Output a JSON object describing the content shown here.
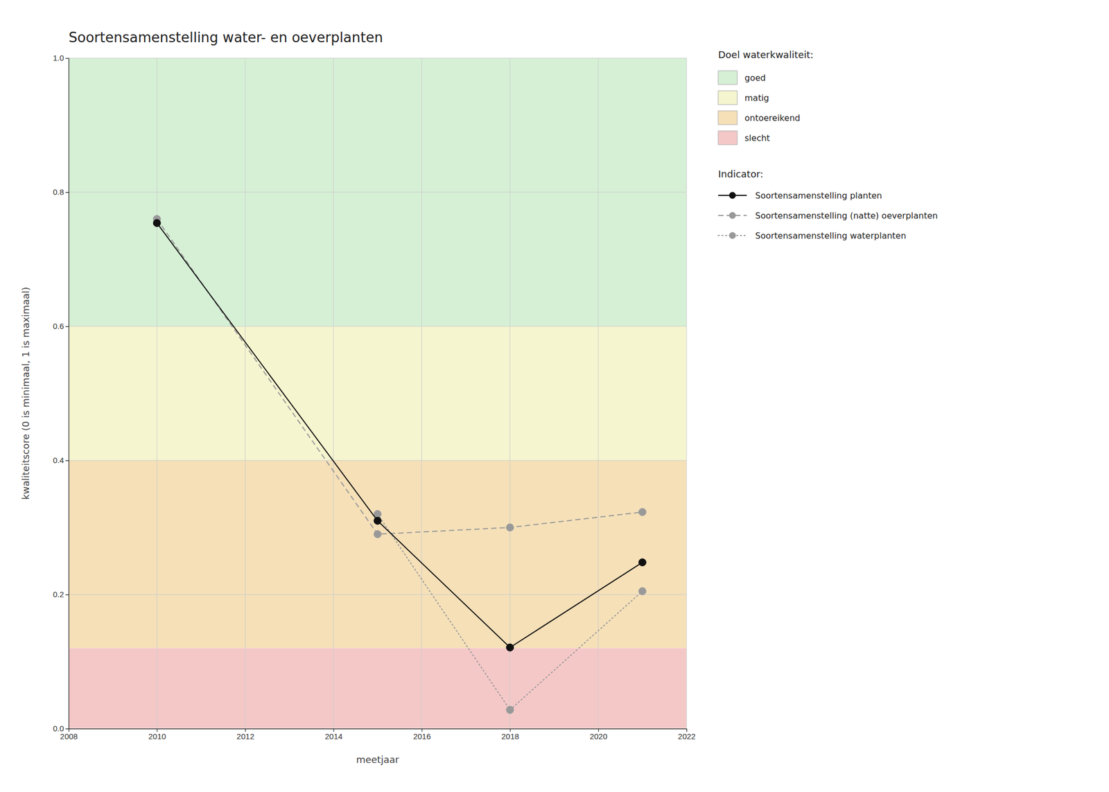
{
  "chart_data": {
    "type": "line",
    "title": "Soortensamenstelling water- en oeverplanten",
    "x_label": "meetjaar",
    "y_label": "kwaliteitscore (0 is minimaal, 1 is maximaal)",
    "xlim": [
      2008,
      2022
    ],
    "ylim": [
      0.0,
      1.0
    ],
    "xticks": [
      2008,
      2010,
      2012,
      2014,
      2016,
      2018,
      2020,
      2022
    ],
    "yticks": [
      {
        "value": 0.0,
        "label": "0.0"
      },
      0.2,
      0.4,
      0.6,
      0.8,
      {
        "value": 1.0,
        "label": "1.0"
      }
    ],
    "grid": true,
    "legend": "right",
    "zone_legend_title": "Doel waterkwaliteit:",
    "series_legend_title": "Indicator:",
    "zones": [
      {
        "ymin": 0.6,
        "ymax": 1.0,
        "color": "#d6f0d6",
        "label": "goed"
      },
      {
        "ymin": 0.4,
        "ymax": 0.6,
        "color": "#f5f5d0",
        "label": "matig"
      },
      {
        "ymin": 0.12,
        "ymax": 0.4,
        "color": "#f5e0b8",
        "label": "ontoereikend"
      },
      {
        "ymin": 0.0,
        "ymax": 0.12,
        "color": "#f5c8c8",
        "label": "slecht"
      }
    ],
    "series": [
      {
        "name": "Soortensamenstelling planten",
        "color": "#111111",
        "line_style": "solid",
        "marker": "circle",
        "x": [
          2010,
          2015,
          2018,
          2021
        ],
        "values": [
          0.754,
          0.31,
          0.121,
          0.248
        ]
      },
      {
        "name": "Soortensamenstelling (natte) oeverplanten",
        "color": "#999999",
        "line_style": "dashed",
        "marker": "circle",
        "x": [
          2010,
          2015,
          2018,
          2021
        ],
        "values": [
          0.76,
          0.29,
          0.3,
          0.323
        ]
      },
      {
        "name": "Soortensamenstelling waterplanten",
        "color": "#999999",
        "line_style": "dotted",
        "marker": "circle",
        "x": [
          2015,
          2018,
          2021
        ],
        "values": [
          0.32,
          0.028,
          0.205
        ]
      }
    ]
  }
}
